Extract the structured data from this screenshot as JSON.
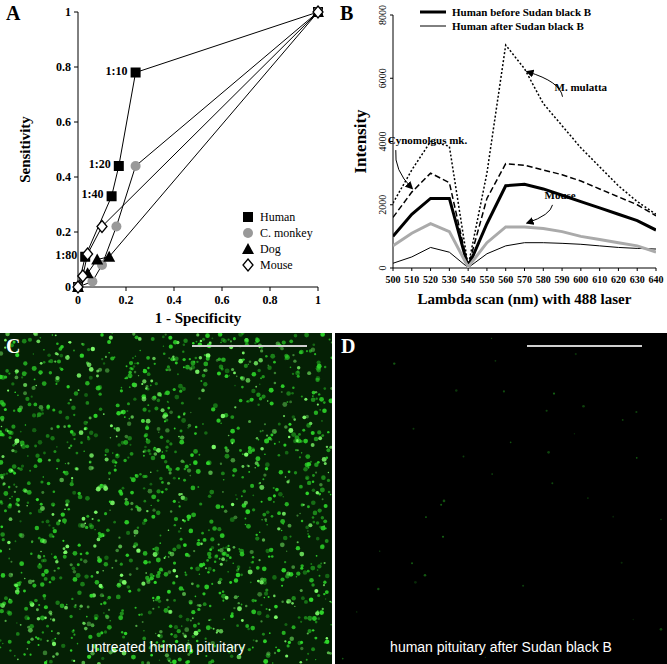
{
  "chart_data": [
    {
      "panel": "A",
      "type": "scatter",
      "x_label": "1 - Specificity",
      "y_label": "Sensitivity",
      "xlim": [
        0,
        1
      ],
      "ylim": [
        0,
        1
      ],
      "xticks": [
        0,
        0.2,
        0.4,
        0.6,
        0.8,
        1
      ],
      "yticks": [
        0,
        0.2,
        0.4,
        0.6,
        0.8,
        1
      ],
      "legend": "lower right",
      "grid": false,
      "series": [
        {
          "name": "Human",
          "marker": "square",
          "color": "#000000",
          "x": [
            0,
            0.03,
            0.14,
            0.17,
            0.24,
            1
          ],
          "values": [
            0,
            0.11,
            0.33,
            0.44,
            0.78,
            1
          ],
          "point_labels": [
            null,
            "1:80",
            "1:40",
            "1:20",
            "1:10",
            null
          ]
        },
        {
          "name": "C. monkey",
          "marker": "circle",
          "color": "#999999",
          "x": [
            0,
            0.06,
            0.1,
            0.16,
            0.24,
            1
          ],
          "values": [
            0,
            0.02,
            0.08,
            0.22,
            0.44,
            1
          ]
        },
        {
          "name": "Dog",
          "marker": "triangle",
          "color": "#000000",
          "x": [
            0,
            0.04,
            0.08,
            0.13,
            1
          ],
          "values": [
            0,
            0.05,
            0.1,
            0.11,
            1
          ]
        },
        {
          "name": "Mouse",
          "marker": "diamond",
          "color": "#ffffff",
          "x": [
            0,
            0.02,
            0.04,
            0.1,
            1
          ],
          "values": [
            0,
            0.04,
            0.12,
            0.22,
            1
          ]
        }
      ]
    },
    {
      "panel": "B",
      "type": "line",
      "x_label": "Lambda scan (nm) with 488 laser",
      "y_label": "Intensity",
      "x": [
        500,
        510,
        520,
        530,
        540,
        550,
        560,
        570,
        580,
        590,
        600,
        610,
        620,
        630,
        640
      ],
      "xlim": [
        500,
        640
      ],
      "ylim": [
        0,
        8000
      ],
      "xticks": [
        500,
        510,
        520,
        530,
        540,
        550,
        560,
        570,
        580,
        590,
        600,
        610,
        620,
        630,
        640
      ],
      "yticks": [
        0,
        2000,
        4000,
        6000,
        8000
      ],
      "legend": "upper left",
      "grid": false,
      "series": [
        {
          "name": "Human before Sudan black B",
          "color": "#000000",
          "line_style": "bold",
          "values": [
            1000,
            1700,
            2200,
            2200,
            30,
            1400,
            2600,
            2650,
            2500,
            2300,
            2100,
            1900,
            1700,
            1500,
            1200
          ]
        },
        {
          "name": "Human after Sudan black B",
          "color": "#000000",
          "line_style": "solid",
          "values": [
            150,
            350,
            650,
            500,
            10,
            450,
            700,
            800,
            800,
            780,
            750,
            700,
            650,
            620,
            600
          ]
        },
        {
          "label": "M. mulatta",
          "label_at": 570,
          "color": "#000000",
          "line_style": "dotted",
          "values": [
            2050,
            3100,
            4000,
            3850,
            60,
            3000,
            7050,
            6300,
            5200,
            4500,
            3800,
            3200,
            2600,
            2100,
            1700
          ]
        },
        {
          "label": "Cynomolgus mk.",
          "label_at": 510,
          "color": "#000000",
          "line_style": "dashed",
          "values": [
            1600,
            2400,
            3000,
            2700,
            40,
            2200,
            3300,
            3250,
            3100,
            2950,
            2750,
            2500,
            2250,
            2000,
            1650
          ]
        },
        {
          "label": "Mouse",
          "label_at": 570,
          "color": "#aaaaaa",
          "line_style": "bold",
          "values": [
            700,
            1100,
            1400,
            1150,
            30,
            800,
            1300,
            1300,
            1250,
            1150,
            1000,
            900,
            800,
            700,
            500
          ]
        }
      ]
    }
  ],
  "images": [
    {
      "panel": "C",
      "caption": "untreated human pituitary"
    },
    {
      "panel": "D",
      "caption": "human pituitary after Sudan black B"
    }
  ]
}
